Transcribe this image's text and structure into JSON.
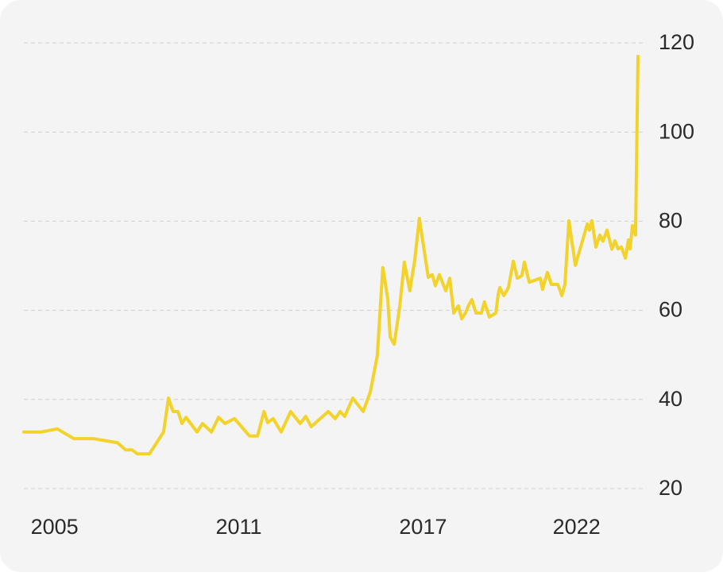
{
  "chart_data": {
    "type": "line",
    "x": [
      2004.0,
      2004.57,
      2005.09,
      2005.63,
      2006.28,
      2007.05,
      2007.31,
      2007.52,
      2007.7,
      2008.09,
      2008.55,
      2008.71,
      2008.86,
      2009.02,
      2009.15,
      2009.28,
      2009.64,
      2009.82,
      2010.11,
      2010.34,
      2010.55,
      2010.86,
      2011.35,
      2011.61,
      2011.82,
      2011.94,
      2012.12,
      2012.38,
      2012.69,
      2013.0,
      2013.18,
      2013.36,
      2013.91,
      2014.14,
      2014.3,
      2014.45,
      2014.71,
      2015.05,
      2015.28,
      2015.51,
      2015.69,
      2015.85,
      2015.93,
      2016.06,
      2016.24,
      2016.39,
      2016.57,
      2016.73,
      2016.88,
      2017.17,
      2017.3,
      2017.4,
      2017.53,
      2017.74,
      2017.87,
      2018.0,
      2018.15,
      2018.26,
      2018.38,
      2018.49,
      2018.59,
      2018.72,
      2018.9,
      2019.0,
      2019.16,
      2019.37,
      2019.45,
      2019.5,
      2019.63,
      2019.78,
      2019.94,
      2020.07,
      2020.22,
      2020.3,
      2020.46,
      2020.82,
      2020.89,
      2021.05,
      2021.18,
      2021.39,
      2021.52,
      2021.62,
      2021.75,
      2021.96,
      2022.35,
      2022.42,
      2022.5,
      2022.63,
      2022.76,
      2022.86,
      2022.99,
      2023.15,
      2023.25,
      2023.35,
      2023.46,
      2023.59,
      2023.69,
      2023.74,
      2023.82,
      2023.92,
      2024.0
    ],
    "series": [
      {
        "color": "#f3d22a",
        "values": [
          32.7,
          32.7,
          33.4,
          31.2,
          31.2,
          30.3,
          28.7,
          28.7,
          27.8,
          27.8,
          32.7,
          40.3,
          37.3,
          37.3,
          34.6,
          36.0,
          32.7,
          34.6,
          32.7,
          36.0,
          34.6,
          35.7,
          31.8,
          31.8,
          37.3,
          34.8,
          35.7,
          32.7,
          37.3,
          34.6,
          36.2,
          33.9,
          37.3,
          35.7,
          37.3,
          36.2,
          40.3,
          37.3,
          41.6,
          49.8,
          69.6,
          62.6,
          54.0,
          52.4,
          60.8,
          70.8,
          64.4,
          71.3,
          80.6,
          67.4,
          68.0,
          65.5,
          68.0,
          64.4,
          67.2,
          59.4,
          61.0,
          58.1,
          59.4,
          61.2,
          62.4,
          59.4,
          59.4,
          61.9,
          58.5,
          59.4,
          63.7,
          65.1,
          63.3,
          65.1,
          71.0,
          67.2,
          67.8,
          70.8,
          66.3,
          67.2,
          64.7,
          68.5,
          65.8,
          65.8,
          63.3,
          65.8,
          80.1,
          70.1,
          79.4,
          78.0,
          80.1,
          74.2,
          76.9,
          75.5,
          78.0,
          73.7,
          75.6,
          73.8,
          74.2,
          71.7,
          75.8,
          73.8,
          79.0,
          76.9,
          117.0
        ]
      }
    ],
    "xlim": [
      2004.0,
      2024.0
    ],
    "xticks": [
      2005,
      2011,
      2017,
      2022
    ],
    "ylim": [
      20,
      120
    ],
    "yticks": [
      20,
      40,
      60,
      80,
      100,
      120
    ],
    "grid": true
  }
}
